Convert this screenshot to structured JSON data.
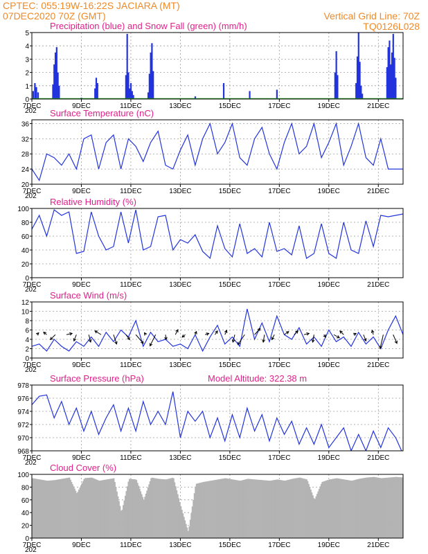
{
  "header": {
    "line1_left": "CPTEC:   055:19W-16:22S   JACIARA (MT)",
    "line2_left": "07DEC2020 70Z (GMT)",
    "line1_right": "Vertical Grid Line: 70Z",
    "line2_right": "TQ0126L028"
  },
  "x_axis": {
    "ticks": [
      {
        "day": 0,
        "label": "7DEC"
      },
      {
        "day": 2,
        "label": "9DEC"
      },
      {
        "day": 4,
        "label": "11DEC"
      },
      {
        "day": 6,
        "label": "13DEC"
      },
      {
        "day": 8,
        "label": "15DEC"
      },
      {
        "day": 10,
        "label": "17DEC"
      },
      {
        "day": 12,
        "label": "19DEC"
      },
      {
        "day": 14,
        "label": "21DEC"
      }
    ],
    "range": [
      0,
      15
    ],
    "minor_label": "202"
  },
  "colors": {
    "header": "#ee8a28",
    "title": "#e0208a",
    "precip": "#2233dd",
    "snow": "#22aa22",
    "line": "#2233dd",
    "cloud": "#b3b3b3",
    "grid": "#9a9a9a"
  },
  "chart_data": [
    {
      "id": "precip",
      "type": "bar",
      "title": "Precipitation (blue) and Snow Fall (green) (mm/h)",
      "ylim": [
        0,
        5
      ],
      "yticks": [
        0,
        1,
        2,
        3,
        4,
        5
      ],
      "grid": true,
      "series": [
        {
          "name": "Precipitation",
          "x": [
            0.05,
            0.12,
            0.18,
            0.25,
            0.85,
            0.9,
            0.95,
            1.0,
            1.05,
            1.1,
            2.0,
            2.55,
            2.6,
            2.65,
            3.8,
            3.85,
            3.9,
            3.95,
            4.0,
            4.05,
            4.1,
            4.7,
            4.75,
            4.8,
            4.85,
            4.9,
            6.6,
            7.75,
            8.8,
            9.9,
            12.25,
            12.3,
            12.35,
            13.1,
            13.15,
            13.2,
            13.25,
            13.3,
            13.35,
            14.35,
            14.4,
            14.45,
            14.5,
            14.55,
            14.6,
            14.65,
            14.7
          ],
          "values": [
            0.6,
            1.2,
            0.9,
            0.5,
            1.1,
            2.6,
            3.5,
            3.9,
            2.0,
            1.0,
            0.1,
            0.8,
            1.6,
            1.2,
            1.8,
            4.9,
            2.0,
            0.8,
            1.2,
            0.6,
            0.3,
            0.5,
            1.9,
            3.5,
            4.2,
            2.1,
            0.2,
            1.2,
            0.6,
            0.7,
            2.0,
            3.6,
            1.8,
            1.2,
            3.2,
            5.0,
            2.8,
            1.0,
            0.4,
            2.4,
            3.9,
            4.4,
            2.6,
            3.5,
            4.9,
            3.1,
            1.6
          ]
        },
        {
          "name": "Snow Fall",
          "x": [
            0,
            15
          ],
          "values": [
            0,
            0
          ]
        }
      ]
    },
    {
      "id": "temp",
      "type": "line",
      "title": "Surface Temperature (nC)",
      "ylim": [
        20,
        37
      ],
      "yticks": [
        20,
        24,
        28,
        32,
        36
      ],
      "grid": true,
      "series": [
        {
          "name": "Temperature",
          "x": [
            0,
            0.3,
            0.6,
            0.9,
            1.2,
            1.5,
            1.8,
            2.1,
            2.4,
            2.7,
            3.0,
            3.3,
            3.6,
            3.9,
            4.2,
            4.5,
            4.8,
            5.1,
            5.4,
            5.7,
            6.0,
            6.3,
            6.6,
            6.9,
            7.2,
            7.5,
            7.8,
            8.1,
            8.4,
            8.7,
            9.0,
            9.3,
            9.6,
            9.9,
            10.2,
            10.5,
            10.8,
            11.1,
            11.4,
            11.7,
            12.0,
            12.3,
            12.6,
            12.9,
            13.2,
            13.5,
            13.8,
            14.1,
            14.4,
            14.7,
            15.0
          ],
          "values": [
            24,
            21,
            28,
            27,
            25,
            28,
            24,
            32,
            33,
            24,
            31,
            33,
            24,
            32,
            30,
            26,
            31,
            34,
            25,
            24,
            29,
            33,
            25,
            32,
            36,
            28,
            31,
            36,
            27,
            25,
            32,
            35,
            28,
            24,
            31,
            36,
            28,
            30,
            36,
            27,
            31,
            36,
            25,
            30,
            36,
            27,
            25,
            32,
            24,
            24,
            24
          ]
        }
      ]
    },
    {
      "id": "rh",
      "type": "line",
      "title": "Relative Humidity (%)",
      "ylim": [
        0,
        100
      ],
      "yticks": [
        0,
        20,
        40,
        60,
        80,
        100
      ],
      "grid": true,
      "series": [
        {
          "name": "Relative Humidity",
          "x": [
            0,
            0.3,
            0.6,
            0.9,
            1.2,
            1.5,
            1.8,
            2.1,
            2.4,
            2.7,
            3.0,
            3.3,
            3.6,
            3.9,
            4.2,
            4.5,
            4.8,
            5.1,
            5.4,
            5.7,
            6.0,
            6.3,
            6.6,
            6.9,
            7.2,
            7.5,
            7.8,
            8.1,
            8.4,
            8.7,
            9.0,
            9.3,
            9.6,
            9.9,
            10.2,
            10.5,
            10.8,
            11.1,
            11.4,
            11.7,
            12.0,
            12.3,
            12.6,
            12.9,
            13.2,
            13.5,
            13.8,
            14.1,
            14.4,
            14.7,
            15.0
          ],
          "values": [
            70,
            90,
            60,
            98,
            90,
            95,
            35,
            38,
            95,
            60,
            40,
            45,
            95,
            50,
            98,
            40,
            45,
            88,
            90,
            40,
            55,
            50,
            62,
            38,
            28,
            75,
            42,
            30,
            78,
            35,
            42,
            30,
            80,
            38,
            42,
            33,
            75,
            28,
            35,
            78,
            35,
            28,
            80,
            40,
            35,
            82,
            45,
            90,
            88,
            90,
            92
          ]
        }
      ]
    },
    {
      "id": "wind",
      "type": "line",
      "title": "Surface Wind (m/s)",
      "ylim": [
        0,
        12
      ],
      "yticks": [
        0,
        2,
        4,
        6,
        8,
        10,
        12
      ],
      "grid": true,
      "series": [
        {
          "name": "Wind Speed",
          "x": [
            0,
            0.3,
            0.6,
            0.9,
            1.2,
            1.5,
            1.8,
            2.1,
            2.4,
            2.7,
            3.0,
            3.3,
            3.6,
            3.9,
            4.2,
            4.5,
            4.8,
            5.1,
            5.4,
            5.7,
            6.0,
            6.3,
            6.6,
            6.9,
            7.2,
            7.5,
            7.8,
            8.1,
            8.4,
            8.7,
            9.0,
            9.3,
            9.6,
            9.9,
            10.2,
            10.5,
            10.8,
            11.1,
            11.4,
            11.7,
            12.0,
            12.3,
            12.6,
            12.9,
            13.2,
            13.5,
            13.8,
            14.1,
            14.4,
            14.7,
            15.0
          ],
          "values": [
            2.5,
            3.0,
            1.5,
            4.0,
            2.5,
            1.5,
            3.5,
            2.5,
            4.5,
            2.5,
            5.5,
            3.5,
            6.0,
            4.5,
            8.0,
            2.5,
            5.5,
            3.5,
            4.0,
            2.5,
            3.0,
            2.0,
            5.0,
            1.5,
            4.5,
            7.0,
            3.0,
            4.5,
            2.5,
            10.5,
            4.0,
            7.5,
            3.5,
            9.0,
            5.0,
            4.0,
            6.5,
            3.0,
            4.5,
            2.5,
            6.0,
            3.5,
            4.5,
            2.5,
            5.5,
            3.0,
            4.5,
            2.0,
            6.0,
            9.0,
            5.0
          ]
        },
        {
          "name": "Wind Direction",
          "x": [
            0.2,
            0.6,
            0.95,
            1.4,
            1.8,
            2.3,
            2.8,
            3.3,
            3.8,
            4.2,
            4.6,
            5.0,
            5.4,
            5.8,
            6.2,
            6.6,
            7.0,
            7.4,
            7.8,
            8.2,
            8.6,
            9.0,
            9.4,
            9.8,
            10.2,
            10.6,
            11.0,
            11.4,
            11.8,
            12.2,
            12.6,
            13.0,
            13.4,
            13.8,
            14.2,
            14.6
          ],
          "u": [
            0.3,
            -0.5,
            -0.8,
            0.9,
            -0.4,
            0.3,
            -1.0,
            0.5,
            0.6,
            1.2,
            -0.2,
            -0.9,
            0.1,
            0.4,
            -0.5,
            0.2,
            0.6,
            0.4,
            0.3,
            -0.3,
            -1.1,
            0.9,
            -0.2,
            -0.4,
            0.7,
            0.6,
            0.8,
            -0.2,
            0.3,
            0.9,
            -0.6,
            0.4,
            0.4,
            -0.2,
            -0.5,
            0.6
          ],
          "v": [
            0.3,
            0.4,
            -0.8,
            0.2,
            -1.0,
            -1.2,
            0.6,
            -1.5,
            -0.8,
            -1.4,
            0.3,
            -1.8,
            -0.8,
            0.8,
            -0.4,
            0.5,
            0.2,
            0.6,
            0.7,
            -1.2,
            -1.6,
            1.0,
            -1.2,
            -0.8,
            0.5,
            0.6,
            0.2,
            -1.2,
            -0.4,
            -0.5,
            0.6,
            0.2,
            -1.0,
            0.7,
            -2.2,
            -1.4
          ]
        }
      ]
    },
    {
      "id": "pres",
      "type": "line",
      "title": "Surface Pressure (hPa)",
      "annotation": "Model Altitude: 322.38 m",
      "ylim": [
        968,
        978
      ],
      "yticks": [
        968,
        970,
        972,
        974,
        976,
        978
      ],
      "grid": true,
      "series": [
        {
          "name": "Pressure",
          "x": [
            0,
            0.3,
            0.6,
            0.9,
            1.2,
            1.5,
            1.8,
            2.1,
            2.4,
            2.7,
            3.0,
            3.3,
            3.6,
            3.9,
            4.2,
            4.5,
            4.8,
            5.1,
            5.4,
            5.7,
            6.0,
            6.3,
            6.6,
            6.9,
            7.2,
            7.5,
            7.8,
            8.1,
            8.4,
            8.7,
            9.0,
            9.3,
            9.6,
            9.9,
            10.2,
            10.5,
            10.8,
            11.1,
            11.4,
            11.7,
            12.0,
            12.3,
            12.6,
            12.9,
            13.2,
            13.5,
            13.8,
            14.1,
            14.4,
            14.7,
            15.0
          ],
          "values": [
            975,
            976.3,
            976.5,
            973,
            975.5,
            972,
            974.5,
            971,
            974,
            970.5,
            973,
            975,
            971,
            974.5,
            971,
            975.5,
            972,
            974,
            972,
            977,
            970,
            974,
            972.5,
            974,
            970,
            973,
            969.5,
            973.5,
            970,
            974.5,
            971,
            973.5,
            969.5,
            973,
            970.5,
            972.5,
            969,
            971.5,
            969,
            972,
            968.5,
            970,
            971.5,
            968,
            970.5,
            968,
            971,
            968.5,
            971.5,
            970,
            967.5
          ]
        }
      ]
    },
    {
      "id": "cloud",
      "type": "area",
      "title": "Cloud Cover (%)",
      "ylim": [
        0,
        100
      ],
      "yticks": [
        0,
        20,
        40,
        60,
        80,
        100
      ],
      "grid": true,
      "series": [
        {
          "name": "Cloud Cover",
          "x": [
            0,
            0.3,
            0.6,
            0.9,
            1.2,
            1.5,
            1.8,
            2.1,
            2.4,
            2.7,
            3.0,
            3.3,
            3.6,
            3.9,
            4.2,
            4.5,
            4.8,
            5.1,
            5.4,
            5.7,
            6.0,
            6.3,
            6.6,
            6.9,
            7.2,
            7.5,
            7.8,
            8.1,
            8.4,
            8.7,
            9.0,
            9.3,
            9.6,
            9.9,
            10.2,
            10.5,
            10.8,
            11.1,
            11.4,
            11.7,
            12.0,
            12.3,
            12.6,
            12.9,
            13.2,
            13.5,
            13.8,
            14.1,
            14.4,
            14.7,
            15.0
          ],
          "values": [
            94,
            92,
            90,
            91,
            93,
            95,
            70,
            94,
            95,
            90,
            92,
            94,
            40,
            93,
            92,
            60,
            95,
            93,
            92,
            95,
            50,
            10,
            85,
            88,
            90,
            92,
            94,
            92,
            90,
            93,
            92,
            91,
            90,
            92,
            90,
            93,
            95,
            92,
            60,
            88,
            92,
            94,
            92,
            90,
            93,
            95,
            96,
            94,
            95,
            96,
            95
          ]
        }
      ]
    }
  ]
}
